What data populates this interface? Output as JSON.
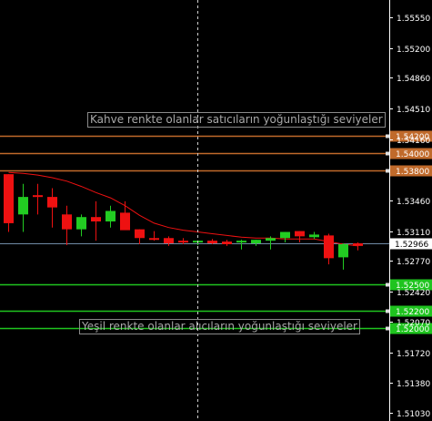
{
  "chart_data": {
    "type": "candlestick",
    "title": "",
    "xlabel": "",
    "ylabel": "",
    "ylim": [
      1.5094,
      1.5575
    ],
    "y_ticks": [
      "1.55550",
      "1.55200",
      "1.54860",
      "1.54510",
      "1.54160",
      "1.53460",
      "1.53110",
      "1.52770",
      "1.52420",
      "1.52070",
      "1.51720",
      "1.51380",
      "1.51030"
    ],
    "current_price": {
      "value": 1.52966,
      "label": "1.52966",
      "line_color": "#6f8aa6"
    },
    "resistance_levels": [
      {
        "value": 1.542,
        "label": "1.54200",
        "color": "#c06a2b"
      },
      {
        "value": 1.54,
        "label": "1.54000",
        "color": "#c06a2b"
      },
      {
        "value": 1.538,
        "label": "1.53800",
        "color": "#c06a2b"
      }
    ],
    "support_levels": [
      {
        "value": 1.525,
        "label": "1.52500",
        "color": "#1fc41f"
      },
      {
        "value": 1.522,
        "label": "1.52200",
        "color": "#1fc41f"
      },
      {
        "value": 1.52,
        "label": "1.52000",
        "color": "#1fc41f"
      }
    ],
    "annotations": {
      "sellers": "Kahve renkte olanlar satıcıların yoğunlaştığı seviyeler",
      "buyers": "Yeşil renkte olanlar alıcıların yoğunlaştığı seviyeler"
    },
    "candles": [
      {
        "o": 1.5376,
        "h": 1.5376,
        "l": 1.531,
        "c": 1.532
      },
      {
        "o": 1.533,
        "h": 1.5365,
        "l": 1.531,
        "c": 1.535
      },
      {
        "o": 1.5352,
        "h": 1.5365,
        "l": 1.533,
        "c": 1.535
      },
      {
        "o": 1.535,
        "h": 1.536,
        "l": 1.5315,
        "c": 1.5338
      },
      {
        "o": 1.533,
        "h": 1.534,
        "l": 1.5295,
        "c": 1.5313
      },
      {
        "o": 1.5313,
        "h": 1.533,
        "l": 1.5305,
        "c": 1.5327
      },
      {
        "o": 1.5327,
        "h": 1.5345,
        "l": 1.53,
        "c": 1.5322
      },
      {
        "o": 1.5322,
        "h": 1.534,
        "l": 1.5315,
        "c": 1.5334
      },
      {
        "o": 1.5332,
        "h": 1.5345,
        "l": 1.5315,
        "c": 1.5312
      },
      {
        "o": 1.5313,
        "h": 1.5313,
        "l": 1.5296,
        "c": 1.5303
      },
      {
        "o": 1.5303,
        "h": 1.5311,
        "l": 1.53,
        "c": 1.5301
      },
      {
        "o": 1.5303,
        "h": 1.5305,
        "l": 1.5294,
        "c": 1.5297
      },
      {
        "o": 1.53,
        "h": 1.5303,
        "l": 1.5296,
        "c": 1.5299
      },
      {
        "o": 1.5298,
        "h": 1.53,
        "l": 1.5295,
        "c": 1.53
      },
      {
        "o": 1.53,
        "h": 1.5302,
        "l": 1.5296,
        "c": 1.5297
      },
      {
        "o": 1.5299,
        "h": 1.5301,
        "l": 1.5294,
        "c": 1.5296
      },
      {
        "o": 1.5298,
        "h": 1.5301,
        "l": 1.529,
        "c": 1.53
      },
      {
        "o": 1.5297,
        "h": 1.5301,
        "l": 1.5294,
        "c": 1.5301
      },
      {
        "o": 1.53,
        "h": 1.5305,
        "l": 1.529,
        "c": 1.5303
      },
      {
        "o": 1.5303,
        "h": 1.531,
        "l": 1.5298,
        "c": 1.531
      },
      {
        "o": 1.5311,
        "h": 1.5311,
        "l": 1.5298,
        "c": 1.5305
      },
      {
        "o": 1.5304,
        "h": 1.531,
        "l": 1.5302,
        "c": 1.5307
      },
      {
        "o": 1.5306,
        "h": 1.5308,
        "l": 1.5273,
        "c": 1.528
      },
      {
        "o": 1.5281,
        "h": 1.5297,
        "l": 1.5267,
        "c": 1.5296
      },
      {
        "o": 1.5297,
        "h": 1.5298,
        "l": 1.5289,
        "c": 1.5294
      }
    ],
    "ma": [
      1.5378,
      1.5377,
      1.5375,
      1.5372,
      1.5368,
      1.5362,
      1.5355,
      1.5349,
      1.534,
      1.5329,
      1.532,
      1.5315,
      1.5312,
      1.531,
      1.5308,
      1.5306,
      1.5304,
      1.5303,
      1.5303,
      1.5302,
      1.5302,
      1.5302,
      1.5299,
      1.5296,
      1.5294
    ],
    "colors": {
      "bull": "#22cc22",
      "bear": "#ee1111",
      "ma": "#ee1111",
      "axis_text": "#ffffff",
      "crosshair": "#cfcfcf",
      "axis_line": "#ffffff"
    }
  }
}
